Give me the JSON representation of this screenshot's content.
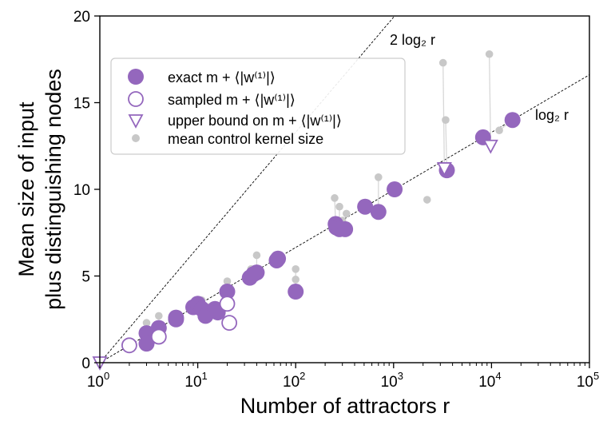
{
  "chart_data": {
    "type": "scatter",
    "xlabel": "Number of attractors r",
    "ylabel_lines": [
      "Mean size of input",
      "plus distinguishing nodes"
    ],
    "xscale": "log",
    "xlim": [
      1,
      100000
    ],
    "ylim": [
      0,
      20
    ],
    "x_ticks": [
      {
        "value": 1,
        "base": "10",
        "exp": "0"
      },
      {
        "value": 10,
        "base": "10",
        "exp": "1"
      },
      {
        "value": 100,
        "base": "10",
        "exp": "2"
      },
      {
        "value": 1000,
        "base": "10",
        "exp": "3"
      },
      {
        "value": 10000,
        "base": "10",
        "exp": "4"
      },
      {
        "value": 100000,
        "base": "10",
        "exp": "5"
      }
    ],
    "y_ticks": [
      {
        "value": 0,
        "label": "0"
      },
      {
        "value": 5,
        "label": "5"
      },
      {
        "value": 10,
        "label": "10"
      },
      {
        "value": 15,
        "label": "15"
      },
      {
        "value": 20,
        "label": "20"
      }
    ],
    "legend": {
      "placement": "upper-left",
      "entries": [
        {
          "marker": "filled-circle",
          "label": "exact m + ⟨|w⁽¹⁾|⟩"
        },
        {
          "marker": "open-circle",
          "label": "sampled m + ⟨|w⁽¹⁾|⟩"
        },
        {
          "marker": "open-triangle-down",
          "label": "upper bound on m + ⟨|w⁽¹⁾|⟩"
        },
        {
          "marker": "small-gray-dot",
          "label": "mean control kernel size"
        }
      ]
    },
    "reference_lines": [
      {
        "label": "2 log₂ r",
        "factor": 2
      },
      {
        "label": "log₂ r",
        "factor": 1
      }
    ],
    "colors": {
      "purple": "#9467bd",
      "gray": "#c8c8c8",
      "edge": "#d8d8d8"
    },
    "series": [
      {
        "name": "exact m + ⟨|w⁽¹⁾|⟩",
        "marker": "filled-circle",
        "points": [
          [
            3,
            1.7
          ],
          [
            3,
            1.1
          ],
          [
            4,
            2.0
          ],
          [
            6,
            2.6
          ],
          [
            6,
            2.5
          ],
          [
            9,
            3.2
          ],
          [
            10,
            3.4
          ],
          [
            11,
            3.1
          ],
          [
            12,
            2.7
          ],
          [
            15,
            3.1
          ],
          [
            16,
            2.9
          ],
          [
            20,
            4.1
          ],
          [
            34,
            4.9
          ],
          [
            37,
            5.1
          ],
          [
            40,
            5.2
          ],
          [
            64,
            5.9
          ],
          [
            66,
            6.0
          ],
          [
            100,
            4.1
          ],
          [
            256,
            8.0
          ],
          [
            260,
            7.8
          ],
          [
            280,
            7.7
          ],
          [
            320,
            7.7
          ],
          [
            512,
            9.0
          ],
          [
            700,
            8.7
          ],
          [
            1024,
            10.0
          ],
          [
            3500,
            11.1
          ],
          [
            8200,
            13.0
          ],
          [
            16384,
            14.0
          ]
        ]
      },
      {
        "name": "sampled m + ⟨|w⁽¹⁾|⟩",
        "marker": "open-circle",
        "points": [
          [
            2,
            1.0
          ],
          [
            4,
            1.5
          ],
          [
            20,
            3.4
          ],
          [
            21,
            2.3
          ]
        ]
      },
      {
        "name": "upper bound on m + ⟨|w⁽¹⁾|⟩",
        "marker": "open-triangle-down",
        "points": [
          [
            1,
            0.0
          ],
          [
            3300,
            11.2
          ],
          [
            9800,
            12.5
          ]
        ]
      },
      {
        "name": "mean control kernel size",
        "marker": "small-gray-dot",
        "points": [
          [
            1,
            0.0
          ],
          [
            2,
            1.0
          ],
          [
            3,
            1.9
          ],
          [
            3,
            2.3
          ],
          [
            4,
            2.1
          ],
          [
            4,
            2.7
          ],
          [
            6,
            2.6
          ],
          [
            9,
            3.4
          ],
          [
            11,
            3.6
          ],
          [
            13,
            3.2
          ],
          [
            16,
            3.2
          ],
          [
            20,
            4.7
          ],
          [
            21,
            3.5
          ],
          [
            35,
            5.4
          ],
          [
            40,
            6.2
          ],
          [
            42,
            5.3
          ],
          [
            65,
            6.1
          ],
          [
            100,
            5.4
          ],
          [
            100,
            4.8
          ],
          [
            250,
            9.5
          ],
          [
            280,
            9.0
          ],
          [
            300,
            8.2
          ],
          [
            330,
            8.6
          ],
          [
            700,
            10.7
          ],
          [
            1024,
            10.0
          ],
          [
            2200,
            9.4
          ],
          [
            3200,
            17.3
          ],
          [
            3400,
            14.0
          ],
          [
            9500,
            17.8
          ],
          [
            12000,
            13.4
          ]
        ]
      }
    ],
    "connectors": [
      [
        3200,
        17.3,
        3300,
        11.2
      ],
      [
        9500,
        17.8,
        9800,
        12.5
      ],
      [
        3400,
        14.0,
        3500,
        11.1
      ],
      [
        700,
        10.7,
        700,
        8.7
      ],
      [
        250,
        9.5,
        256,
        8.0
      ],
      [
        280,
        9.0,
        280,
        7.7
      ],
      [
        100,
        5.4,
        100,
        4.1
      ],
      [
        40,
        6.2,
        40,
        5.2
      ],
      [
        20,
        4.7,
        20,
        4.1
      ],
      [
        12000,
        13.4,
        16384,
        14.0
      ]
    ]
  }
}
